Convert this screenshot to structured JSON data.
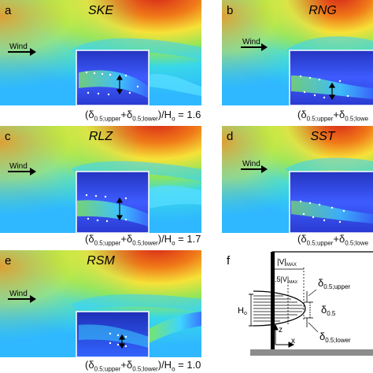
{
  "panels": [
    {
      "letter": "a",
      "model": "SKE",
      "wind": "Wind",
      "ratio": "1.6"
    },
    {
      "letter": "b",
      "model": "RNG",
      "wind": "Wind"
    },
    {
      "letter": "c",
      "model": "RLZ",
      "wind": "Wind",
      "ratio": "1.7"
    },
    {
      "letter": "d",
      "model": "SST",
      "wind": "Wind"
    },
    {
      "letter": "e",
      "model": "RSM",
      "wind": "Wind",
      "ratio": "1.0"
    }
  ],
  "caption": {
    "delta": "δ",
    "sub_upper": "0.5;upper",
    "sub_lower": "0.5;lowe",
    "sub_lower_full": "0.5;lower",
    "ho": "/H",
    "ho_sub": "o",
    "eq": " = "
  },
  "schematic": {
    "letter": "f",
    "vmax": "|V|",
    "vmax_sub": "MAX",
    "half_vmax": "0.5|V|",
    "half_vmax_sub": "MAX",
    "d_upper": "δ",
    "d_upper_sub": "0.5;upper",
    "d_half": "δ",
    "d_half_sub": "0.5",
    "d_lower": "δ",
    "d_lower_sub": "0.5;lower",
    "ho": "H",
    "ho_sub": "o",
    "z": "z",
    "x": "x"
  },
  "colors": {
    "dark_blue": "#1a2ba8",
    "blue": "#3a5cff",
    "cyan": "#32d6ff",
    "green": "#55e070",
    "yellow": "#f6ee38",
    "orange": "#ff9a1a",
    "red": "#e8241a"
  }
}
